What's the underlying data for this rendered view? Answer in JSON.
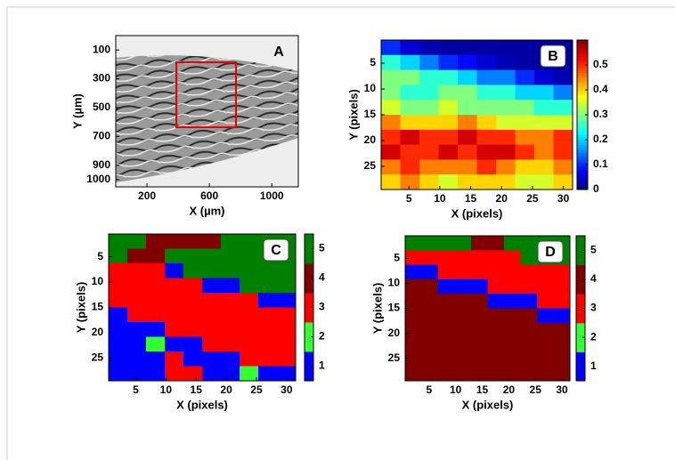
{
  "chart_data": [
    {
      "type": "image",
      "label": "A",
      "xlabel": "X (µm)",
      "ylabel": "Y (µm)",
      "xlim": [
        0,
        1170
      ],
      "xticks": [
        200,
        600,
        1000
      ],
      "ylim": [
        0,
        1050
      ],
      "y_reversed": true,
      "yticks": [
        100,
        300,
        500,
        700,
        900,
        1000
      ]
    },
    {
      "type": "heatmap",
      "label": "B",
      "xlabel": "X (pixels)",
      "ylabel": "Y (pixels)",
      "xlim": [
        0.5,
        31.5
      ],
      "xticks": [
        5,
        10,
        15,
        20,
        25,
        30
      ],
      "ylim": [
        0.5,
        29.5
      ],
      "y_reversed": true,
      "yticks": [
        5,
        10,
        15,
        20,
        25
      ],
      "colormap": "jet",
      "clim": [
        0,
        0.6
      ],
      "cbar_ticks": [
        0,
        0.1,
        0.2,
        0.3,
        0.4,
        0.5
      ],
      "z": [
        [
          0.1,
          0.05,
          0.03,
          0.02,
          0.02,
          0.02,
          0.02,
          0.02,
          0.02,
          0.02
        ],
        [
          0.25,
          0.2,
          0.15,
          0.1,
          0.08,
          0.05,
          0.03,
          0.02,
          0.02,
          0.02
        ],
        [
          0.3,
          0.3,
          0.25,
          0.25,
          0.2,
          0.15,
          0.15,
          0.1,
          0.05,
          0.03
        ],
        [
          0.3,
          0.25,
          0.25,
          0.3,
          0.3,
          0.25,
          0.25,
          0.2,
          0.2,
          0.15
        ],
        [
          0.35,
          0.3,
          0.3,
          0.35,
          0.3,
          0.3,
          0.3,
          0.3,
          0.25,
          0.25
        ],
        [
          0.45,
          0.4,
          0.4,
          0.4,
          0.45,
          0.4,
          0.35,
          0.35,
          0.35,
          0.35
        ],
        [
          0.5,
          0.55,
          0.5,
          0.5,
          0.55,
          0.5,
          0.5,
          0.45,
          0.45,
          0.5
        ],
        [
          0.55,
          0.5,
          0.5,
          0.55,
          0.5,
          0.55,
          0.55,
          0.5,
          0.45,
          0.5
        ],
        [
          0.45,
          0.5,
          0.45,
          0.45,
          0.45,
          0.5,
          0.45,
          0.4,
          0.4,
          0.45
        ],
        [
          0.4,
          0.45,
          0.4,
          0.35,
          0.4,
          0.4,
          0.4,
          0.35,
          0.35,
          0.4
        ]
      ]
    },
    {
      "type": "classmap",
      "label": "C",
      "xlabel": "X (pixels)",
      "ylabel": "Y (pixels)",
      "xlim": [
        0.5,
        31.5
      ],
      "xticks": [
        5,
        10,
        15,
        20,
        25,
        30
      ],
      "ylim": [
        0.5,
        29.5
      ],
      "y_reversed": true,
      "yticks": [
        5,
        10,
        15,
        20,
        25
      ],
      "colors": [
        "#0000ff",
        "#33ff33",
        "#ff0000",
        "#800000",
        "#008000"
      ],
      "clim": [
        0.5,
        5.5
      ],
      "cbar_ticks": [
        1,
        2,
        3,
        4,
        5
      ],
      "z": [
        [
          5,
          5,
          4,
          4,
          4,
          4,
          5,
          5,
          5,
          5
        ],
        [
          5,
          4,
          4,
          5,
          5,
          5,
          5,
          5,
          5,
          5
        ],
        [
          3,
          3,
          3,
          1,
          5,
          5,
          5,
          5,
          5,
          5
        ],
        [
          3,
          3,
          3,
          3,
          3,
          1,
          1,
          5,
          5,
          5
        ],
        [
          3,
          3,
          3,
          3,
          3,
          3,
          3,
          3,
          1,
          1
        ],
        [
          1,
          3,
          3,
          3,
          3,
          3,
          3,
          3,
          3,
          3
        ],
        [
          1,
          1,
          1,
          3,
          3,
          3,
          3,
          3,
          3,
          3
        ],
        [
          1,
          1,
          2,
          1,
          1,
          3,
          3,
          3,
          3,
          3
        ],
        [
          1,
          1,
          1,
          3,
          1,
          1,
          1,
          3,
          3,
          3
        ],
        [
          1,
          1,
          1,
          3,
          3,
          1,
          1,
          2,
          1,
          1
        ]
      ]
    },
    {
      "type": "classmap",
      "label": "D",
      "xlabel": "X (pixels)",
      "ylabel": "Y (pixels)",
      "xlim": [
        0.5,
        31.5
      ],
      "xticks": [
        5,
        10,
        15,
        20,
        25,
        30
      ],
      "ylim": [
        0.5,
        29.5
      ],
      "y_reversed": true,
      "yticks": [
        5,
        10,
        15,
        20,
        25
      ],
      "colors": [
        "#0000ff",
        "#33ff33",
        "#ff0000",
        "#800000",
        "#008000"
      ],
      "clim": [
        0.5,
        5.5
      ],
      "cbar_ticks": [
        1,
        2,
        3,
        4,
        5
      ],
      "z": [
        [
          5,
          5,
          5,
          5,
          4,
          4,
          5,
          5,
          5,
          5
        ],
        [
          3,
          3,
          3,
          3,
          3,
          3,
          3,
          5,
          5,
          5
        ],
        [
          1,
          1,
          3,
          3,
          3,
          3,
          3,
          3,
          3,
          3
        ],
        [
          4,
          4,
          1,
          1,
          1,
          3,
          3,
          3,
          3,
          3
        ],
        [
          4,
          4,
          4,
          4,
          4,
          1,
          1,
          1,
          3,
          3
        ],
        [
          4,
          4,
          4,
          4,
          4,
          4,
          4,
          4,
          1,
          1
        ],
        [
          4,
          4,
          4,
          4,
          4,
          4,
          4,
          4,
          4,
          4
        ],
        [
          4,
          4,
          4,
          4,
          4,
          4,
          4,
          4,
          4,
          4
        ],
        [
          4,
          4,
          4,
          4,
          4,
          4,
          4,
          4,
          4,
          4
        ],
        [
          4,
          4,
          4,
          4,
          4,
          4,
          4,
          4,
          4,
          4
        ]
      ]
    }
  ]
}
